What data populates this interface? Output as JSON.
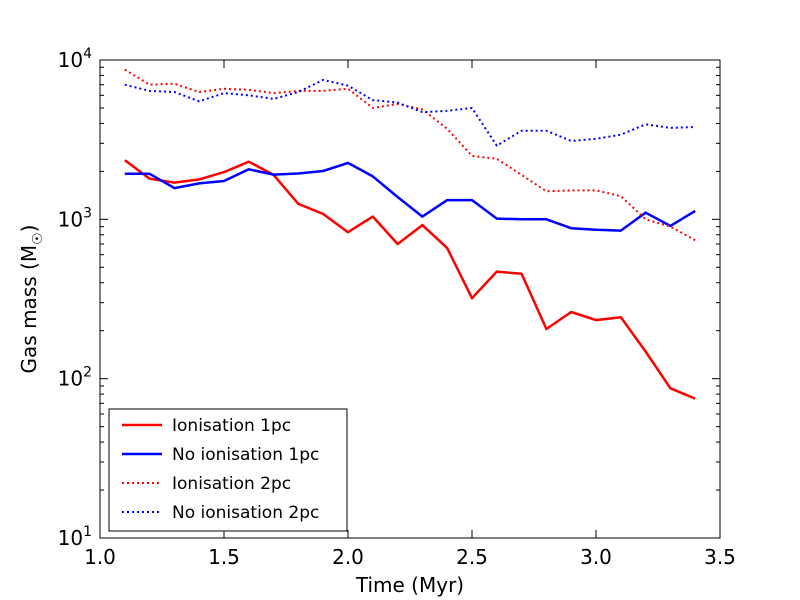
{
  "chart_data": {
    "type": "line",
    "title": "",
    "xlabel": "Time (Myr)",
    "ylabel_main": "Gas mass (M",
    "ylabel_sub": "☉",
    "ylabel_close": ")",
    "xlim": [
      1.0,
      3.5
    ],
    "ylim": [
      10,
      10000
    ],
    "yscale": "log",
    "grid": false,
    "legend_position": "lower-left",
    "x_ticks": [
      {
        "value": 1.0,
        "label": "1.0"
      },
      {
        "value": 1.5,
        "label": "1.5"
      },
      {
        "value": 2.0,
        "label": "2.0"
      },
      {
        "value": 2.5,
        "label": "2.5"
      },
      {
        "value": 3.0,
        "label": "3.0"
      },
      {
        "value": 3.5,
        "label": "3.5"
      }
    ],
    "y_ticks": [
      {
        "value": 10,
        "base": "10",
        "exp": "1"
      },
      {
        "value": 100,
        "base": "10",
        "exp": "2"
      },
      {
        "value": 1000,
        "base": "10",
        "exp": "3"
      },
      {
        "value": 10000,
        "base": "10",
        "exp": "4"
      }
    ],
    "x": [
      1.1,
      1.2,
      1.3,
      1.4,
      1.5,
      1.6,
      1.7,
      1.8,
      1.9,
      2.0,
      2.1,
      2.2,
      2.3,
      2.4,
      2.5,
      2.6,
      2.7,
      2.8,
      2.9,
      3.0,
      3.1,
      3.2,
      3.3,
      3.4
    ],
    "series": [
      {
        "name": "Ionisation 1pc",
        "color": "#ff0000",
        "style": "solid",
        "values": [
          2350,
          1800,
          1700,
          1780,
          1980,
          2300,
          1900,
          1250,
          1080,
          830,
          1040,
          700,
          920,
          660,
          320,
          470,
          455,
          205,
          262,
          233,
          243,
          148,
          87,
          75
        ]
      },
      {
        "name": "No ionisation 1pc",
        "color": "#0000ff",
        "style": "solid",
        "values": [
          1930,
          1930,
          1570,
          1680,
          1740,
          2060,
          1910,
          1940,
          2010,
          2260,
          1860,
          1380,
          1040,
          1320,
          1320,
          1010,
          1000,
          1000,
          880,
          860,
          850,
          1100,
          910,
          1130
        ]
      },
      {
        "name": "Ionisation 2pc",
        "color": "#ff0000",
        "style": "dotted",
        "values": [
          8700,
          7000,
          7100,
          6300,
          6600,
          6500,
          6200,
          6400,
          6400,
          6600,
          5000,
          5300,
          4900,
          3700,
          2500,
          2400,
          1900,
          1500,
          1520,
          1520,
          1400,
          1000,
          900,
          740
        ]
      },
      {
        "name": "No ionisation 2pc",
        "color": "#0000ff",
        "style": "dotted",
        "values": [
          7000,
          6400,
          6300,
          5500,
          6200,
          6000,
          5700,
          6300,
          7500,
          6900,
          5600,
          5400,
          4700,
          4800,
          5000,
          2900,
          3600,
          3600,
          3100,
          3200,
          3400,
          3950,
          3750,
          3800
        ]
      }
    ]
  }
}
